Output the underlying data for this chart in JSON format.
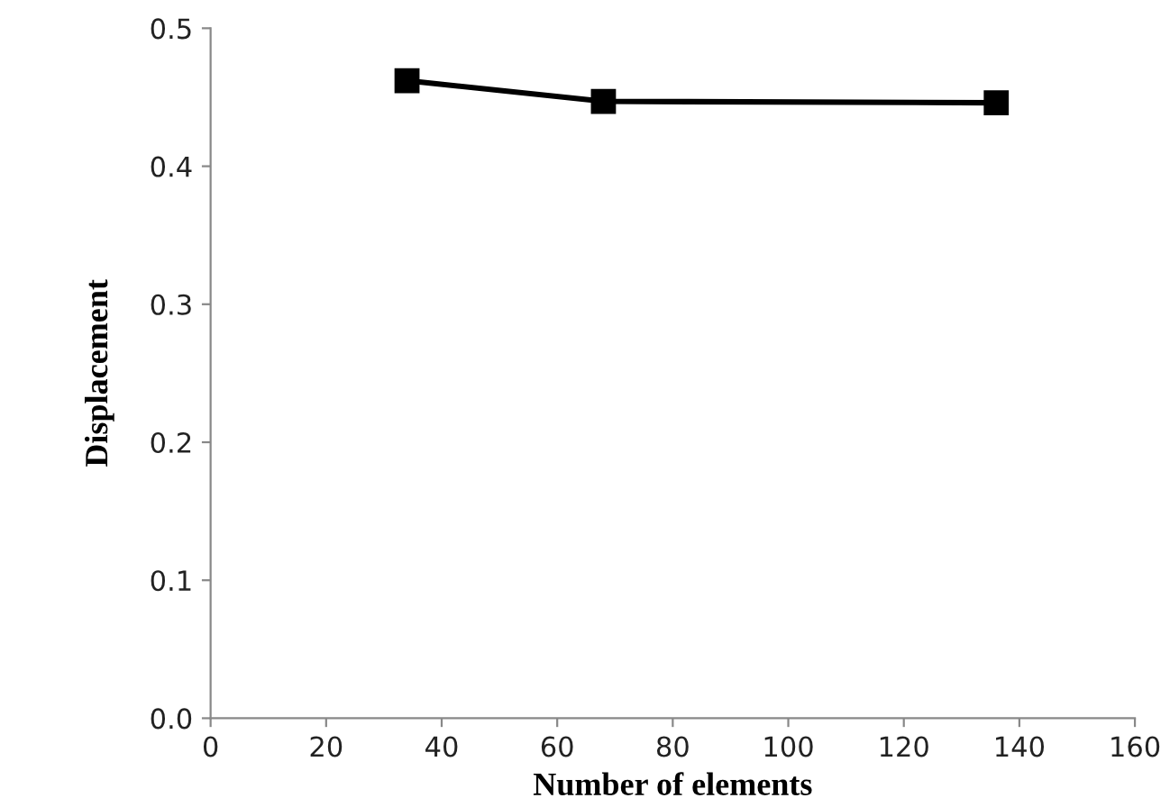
{
  "chart_data": {
    "type": "line",
    "xlabel": "Number of elements",
    "ylabel": "Displacement",
    "x": [
      34,
      68,
      136
    ],
    "series": [
      {
        "color": "#000000",
        "values": [
          0.462,
          0.447,
          0.446
        ]
      }
    ],
    "marker": "square",
    "line_style": "solid",
    "grid": false,
    "xlim": [
      0,
      160
    ],
    "xticks": [
      0,
      20,
      40,
      60,
      80,
      100,
      120,
      140,
      160
    ],
    "ylim": [
      0,
      0.5
    ],
    "yticks": [
      {
        "value": 0,
        "label": "0.0"
      },
      {
        "value": 0.1,
        "label": "0.1"
      },
      {
        "value": 0.2,
        "label": "0.2"
      },
      {
        "value": 0.3,
        "label": "0.3"
      },
      {
        "value": 0.4,
        "label": "0.4"
      },
      {
        "value": 0.5,
        "label": "0.5"
      }
    ]
  }
}
